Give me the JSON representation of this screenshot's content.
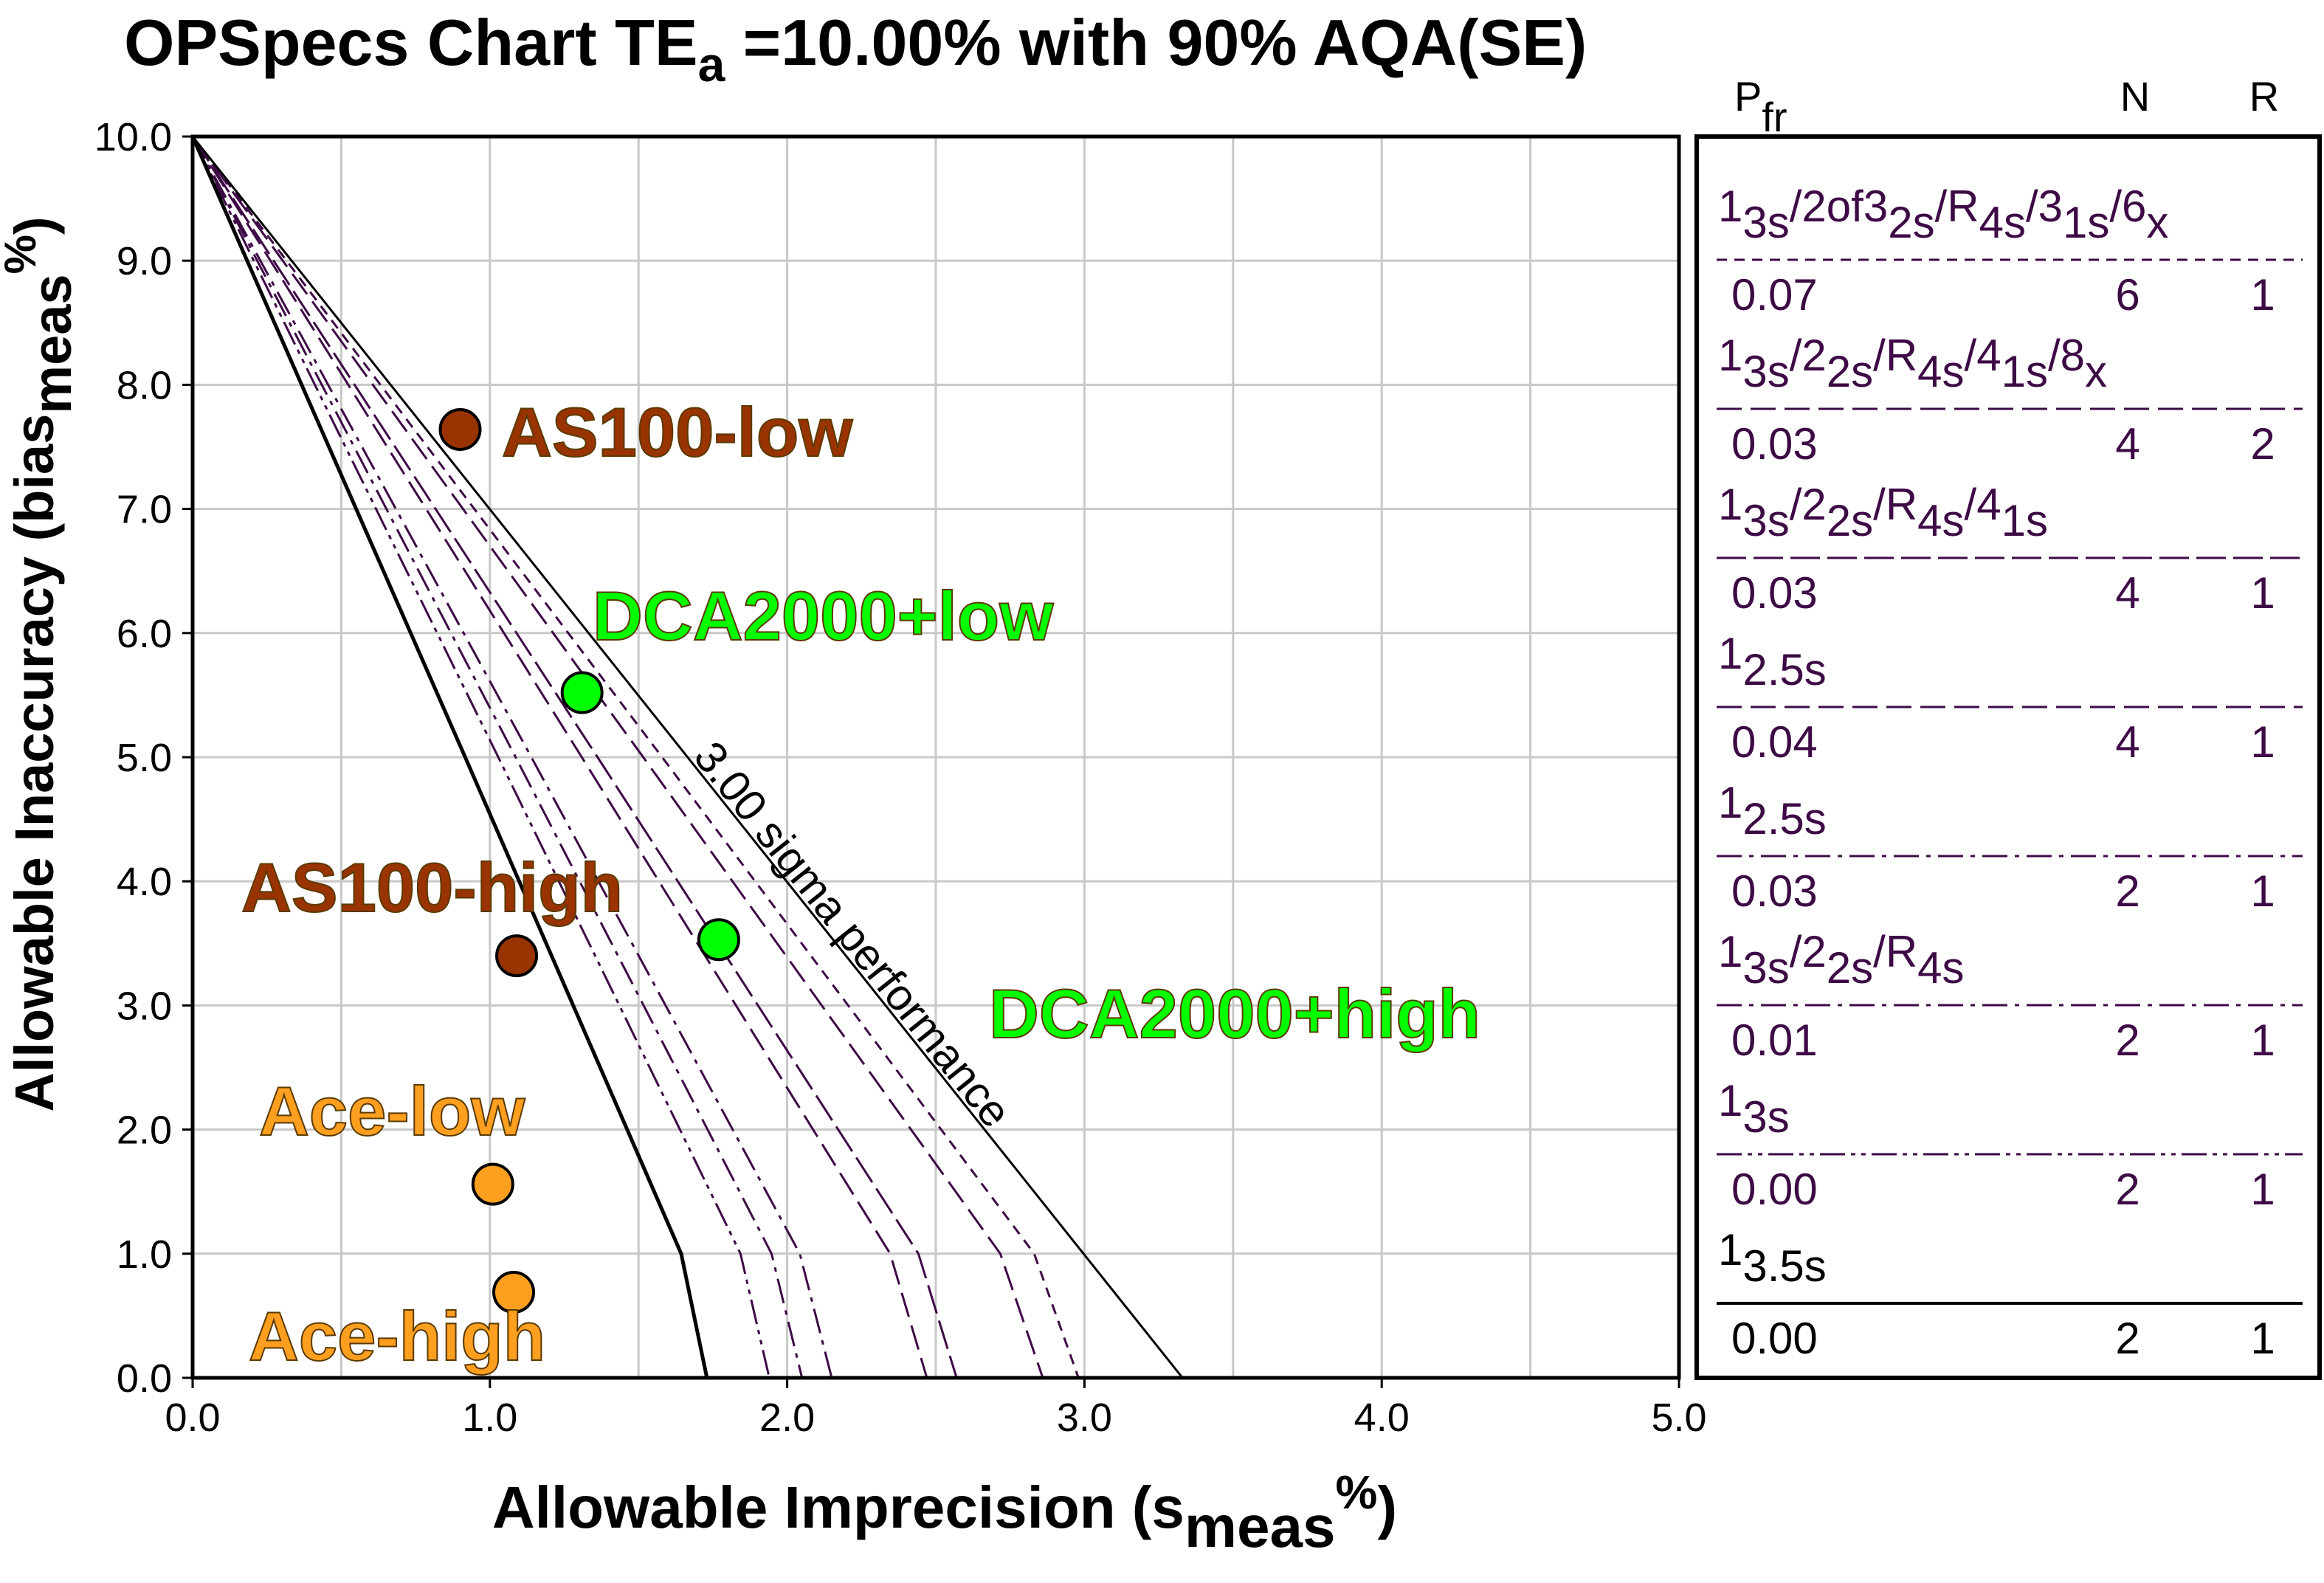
{
  "chart_data": {
    "type": "line",
    "title": {
      "main": "OPSpecs Chart TE",
      "sub": "a",
      "rest": " =10.00% with 90% AQA(SE)"
    },
    "xlabel": {
      "main": "Allowable Imprecision (s",
      "sub": "meas",
      "sup": "%",
      "end": ")"
    },
    "ylabel": {
      "main": "Allowable Inaccuracy (bias",
      "sub": "meas",
      "sup": "%",
      "end": ")"
    },
    "xlim": [
      0,
      5
    ],
    "ylim": [
      0,
      10
    ],
    "xticks": [
      "0.0",
      "1.0",
      "2.0",
      "3.0",
      "4.0",
      "5.0"
    ],
    "yticks": [
      "0.0",
      "1.0",
      "2.0",
      "3.0",
      "4.0",
      "5.0",
      "6.0",
      "7.0",
      "8.0",
      "9.0",
      "10.0"
    ],
    "grid": true,
    "sigma_line": {
      "label": "3.00 sigma performance",
      "points": [
        [
          0,
          10
        ],
        [
          3.33,
          0
        ]
      ],
      "color": "#000000"
    },
    "rules": [
      {
        "end_s": 2.98,
        "style": "short-dash",
        "color": "#3d0a45"
      },
      {
        "end_s": 2.86,
        "style": "long-dash",
        "color": "#3d0a45"
      },
      {
        "end_s": 2.57,
        "style": "long-dash-gap",
        "color": "#3d0a45"
      },
      {
        "end_s": 2.47,
        "style": "long-dash",
        "color": "#3d0a45"
      },
      {
        "end_s": 2.15,
        "style": "dash-dot",
        "color": "#3d0a45"
      },
      {
        "end_s": 2.05,
        "style": "dash-dot",
        "color": "#3d0a45"
      },
      {
        "end_s": 1.94,
        "style": "dash-dot-dot",
        "color": "#3d0a45"
      },
      {
        "end_s": 1.73,
        "style": "solid",
        "color": "#000000"
      }
    ],
    "points": [
      {
        "label": "AS100-low",
        "x": 0.9,
        "y": 7.64,
        "color": "#993300"
      },
      {
        "label": "DCA2000+low",
        "x": 1.31,
        "y": 5.52,
        "color": "#00ff00"
      },
      {
        "label": "AS100-high",
        "x": 1.09,
        "y": 3.4,
        "color": "#993300"
      },
      {
        "label": "DCA2000+high",
        "x": 1.77,
        "y": 3.53,
        "color": "#00ff00"
      },
      {
        "label": "Ace-low",
        "x": 1.01,
        "y": 1.56,
        "color": "#ff9f1f"
      },
      {
        "label": "Ace-high",
        "x": 1.08,
        "y": 0.69,
        "color": "#ff9f1f"
      }
    ],
    "legend": {
      "placement": "right",
      "headers": {
        "pfr": "P",
        "pfr_sub": "fr",
        "n": "N",
        "r": "R"
      },
      "rows": [
        {
          "label": [
            [
              "1"
            ],
            [
              "3s",
              "sub"
            ],
            [
              "/2of3"
            ],
            [
              "2s",
              "sub"
            ],
            [
              "/R"
            ],
            [
              "4s",
              "sub"
            ],
            [
              "/3"
            ],
            [
              "1s",
              "sub"
            ],
            [
              "/6"
            ],
            [
              "x",
              "sub"
            ]
          ],
          "pfr": "0.07",
          "n": "6",
          "r": "1"
        },
        {
          "label": [
            [
              "1"
            ],
            [
              "3s",
              "sub"
            ],
            [
              "/2"
            ],
            [
              "2s",
              "sub"
            ],
            [
              "/R"
            ],
            [
              "4s",
              "sub"
            ],
            [
              "/4"
            ],
            [
              "1s",
              "sub"
            ],
            [
              "/8"
            ],
            [
              "x",
              "sub"
            ]
          ],
          "pfr": "0.03",
          "n": "4",
          "r": "2"
        },
        {
          "label": [
            [
              "1"
            ],
            [
              "3s",
              "sub"
            ],
            [
              "/2"
            ],
            [
              "2s",
              "sub"
            ],
            [
              "/R"
            ],
            [
              "4s",
              "sub"
            ],
            [
              "/4"
            ],
            [
              "1s",
              "sub"
            ]
          ],
          "pfr": "0.03",
          "n": "4",
          "r": "1"
        },
        {
          "label": [
            [
              "1"
            ],
            [
              "2.5s",
              "sub"
            ]
          ],
          "pfr": "0.04",
          "n": "4",
          "r": "1"
        },
        {
          "label": [
            [
              "1"
            ],
            [
              "2.5s",
              "sub"
            ]
          ],
          "pfr": "0.03",
          "n": "2",
          "r": "1"
        },
        {
          "label": [
            [
              "1"
            ],
            [
              "3s",
              "sub"
            ],
            [
              "/2"
            ],
            [
              "2s",
              "sub"
            ],
            [
              "/R"
            ],
            [
              "4s",
              "sub"
            ]
          ],
          "pfr": "0.01",
          "n": "2",
          "r": "1"
        },
        {
          "label": [
            [
              "1"
            ],
            [
              "3s",
              "sub"
            ]
          ],
          "pfr": "0.00",
          "n": "2",
          "r": "1"
        },
        {
          "label": [
            [
              "1"
            ],
            [
              "3.5s",
              "sub"
            ]
          ],
          "pfr": "0.00",
          "n": "2",
          "r": "1"
        }
      ]
    }
  }
}
